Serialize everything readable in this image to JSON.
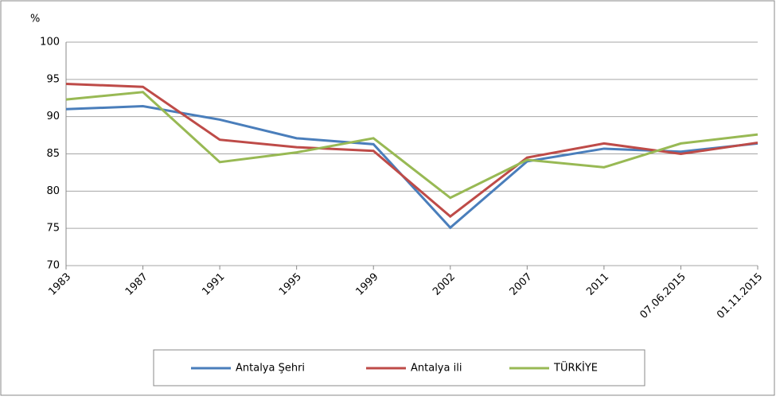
{
  "chart_data": {
    "type": "line",
    "ylabel": "%",
    "categories": [
      "1983",
      "1987",
      "1991",
      "1995",
      "1999",
      "2002",
      "2007",
      "2011",
      "07.06.2015",
      "01.11.2015"
    ],
    "series": [
      {
        "name": "Antalya Şehri",
        "color": "#4a7ebb",
        "values": [
          91.0,
          91.4,
          89.6,
          87.1,
          86.3,
          75.1,
          84.0,
          85.7,
          85.3,
          86.4
        ]
      },
      {
        "name": "Antalya ili",
        "color": "#be4b48",
        "values": [
          94.4,
          94.0,
          86.9,
          85.9,
          85.4,
          76.6,
          84.5,
          86.4,
          85.0,
          86.5
        ]
      },
      {
        "name": "TÜRKİYE",
        "color": "#98b954",
        "values": [
          92.3,
          93.3,
          83.9,
          85.2,
          87.1,
          79.1,
          84.2,
          83.2,
          86.4,
          87.6
        ]
      }
    ],
    "ylim": [
      70,
      100
    ],
    "yticks": [
      70,
      75,
      80,
      85,
      90,
      95,
      100
    ],
    "grid": true,
    "legend": "bottom"
  }
}
